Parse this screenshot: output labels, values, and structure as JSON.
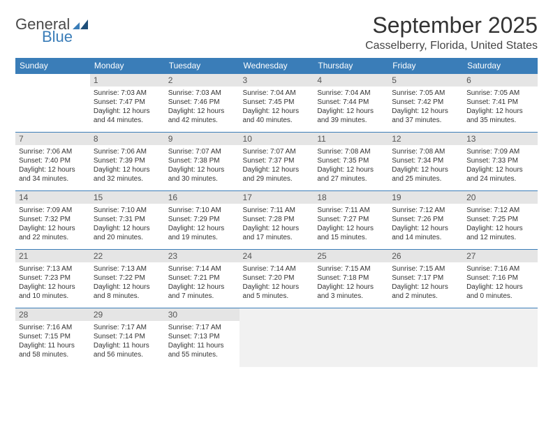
{
  "logo": {
    "word1": "General",
    "word2": "Blue"
  },
  "title": "September 2025",
  "location": "Casselberry, Florida, United States",
  "weekdays": [
    "Sunday",
    "Monday",
    "Tuesday",
    "Wednesday",
    "Thursday",
    "Friday",
    "Saturday"
  ],
  "colors": {
    "header_bg": "#3a7db8",
    "header_fg": "#ffffff",
    "daynum_bg": "#e5e5e5",
    "daynum_fg": "#555555",
    "border": "#3a7db8",
    "trailing_bg": "#f1f1f1",
    "text": "#333333"
  },
  "weeks": [
    [
      null,
      {
        "n": "1",
        "sr": "Sunrise: 7:03 AM",
        "ss": "Sunset: 7:47 PM",
        "d1": "Daylight: 12 hours",
        "d2": "and 44 minutes."
      },
      {
        "n": "2",
        "sr": "Sunrise: 7:03 AM",
        "ss": "Sunset: 7:46 PM",
        "d1": "Daylight: 12 hours",
        "d2": "and 42 minutes."
      },
      {
        "n": "3",
        "sr": "Sunrise: 7:04 AM",
        "ss": "Sunset: 7:45 PM",
        "d1": "Daylight: 12 hours",
        "d2": "and 40 minutes."
      },
      {
        "n": "4",
        "sr": "Sunrise: 7:04 AM",
        "ss": "Sunset: 7:44 PM",
        "d1": "Daylight: 12 hours",
        "d2": "and 39 minutes."
      },
      {
        "n": "5",
        "sr": "Sunrise: 7:05 AM",
        "ss": "Sunset: 7:42 PM",
        "d1": "Daylight: 12 hours",
        "d2": "and 37 minutes."
      },
      {
        "n": "6",
        "sr": "Sunrise: 7:05 AM",
        "ss": "Sunset: 7:41 PM",
        "d1": "Daylight: 12 hours",
        "d2": "and 35 minutes."
      }
    ],
    [
      {
        "n": "7",
        "sr": "Sunrise: 7:06 AM",
        "ss": "Sunset: 7:40 PM",
        "d1": "Daylight: 12 hours",
        "d2": "and 34 minutes."
      },
      {
        "n": "8",
        "sr": "Sunrise: 7:06 AM",
        "ss": "Sunset: 7:39 PM",
        "d1": "Daylight: 12 hours",
        "d2": "and 32 minutes."
      },
      {
        "n": "9",
        "sr": "Sunrise: 7:07 AM",
        "ss": "Sunset: 7:38 PM",
        "d1": "Daylight: 12 hours",
        "d2": "and 30 minutes."
      },
      {
        "n": "10",
        "sr": "Sunrise: 7:07 AM",
        "ss": "Sunset: 7:37 PM",
        "d1": "Daylight: 12 hours",
        "d2": "and 29 minutes."
      },
      {
        "n": "11",
        "sr": "Sunrise: 7:08 AM",
        "ss": "Sunset: 7:35 PM",
        "d1": "Daylight: 12 hours",
        "d2": "and 27 minutes."
      },
      {
        "n": "12",
        "sr": "Sunrise: 7:08 AM",
        "ss": "Sunset: 7:34 PM",
        "d1": "Daylight: 12 hours",
        "d2": "and 25 minutes."
      },
      {
        "n": "13",
        "sr": "Sunrise: 7:09 AM",
        "ss": "Sunset: 7:33 PM",
        "d1": "Daylight: 12 hours",
        "d2": "and 24 minutes."
      }
    ],
    [
      {
        "n": "14",
        "sr": "Sunrise: 7:09 AM",
        "ss": "Sunset: 7:32 PM",
        "d1": "Daylight: 12 hours",
        "d2": "and 22 minutes."
      },
      {
        "n": "15",
        "sr": "Sunrise: 7:10 AM",
        "ss": "Sunset: 7:31 PM",
        "d1": "Daylight: 12 hours",
        "d2": "and 20 minutes."
      },
      {
        "n": "16",
        "sr": "Sunrise: 7:10 AM",
        "ss": "Sunset: 7:29 PM",
        "d1": "Daylight: 12 hours",
        "d2": "and 19 minutes."
      },
      {
        "n": "17",
        "sr": "Sunrise: 7:11 AM",
        "ss": "Sunset: 7:28 PM",
        "d1": "Daylight: 12 hours",
        "d2": "and 17 minutes."
      },
      {
        "n": "18",
        "sr": "Sunrise: 7:11 AM",
        "ss": "Sunset: 7:27 PM",
        "d1": "Daylight: 12 hours",
        "d2": "and 15 minutes."
      },
      {
        "n": "19",
        "sr": "Sunrise: 7:12 AM",
        "ss": "Sunset: 7:26 PM",
        "d1": "Daylight: 12 hours",
        "d2": "and 14 minutes."
      },
      {
        "n": "20",
        "sr": "Sunrise: 7:12 AM",
        "ss": "Sunset: 7:25 PM",
        "d1": "Daylight: 12 hours",
        "d2": "and 12 minutes."
      }
    ],
    [
      {
        "n": "21",
        "sr": "Sunrise: 7:13 AM",
        "ss": "Sunset: 7:23 PM",
        "d1": "Daylight: 12 hours",
        "d2": "and 10 minutes."
      },
      {
        "n": "22",
        "sr": "Sunrise: 7:13 AM",
        "ss": "Sunset: 7:22 PM",
        "d1": "Daylight: 12 hours",
        "d2": "and 8 minutes."
      },
      {
        "n": "23",
        "sr": "Sunrise: 7:14 AM",
        "ss": "Sunset: 7:21 PM",
        "d1": "Daylight: 12 hours",
        "d2": "and 7 minutes."
      },
      {
        "n": "24",
        "sr": "Sunrise: 7:14 AM",
        "ss": "Sunset: 7:20 PM",
        "d1": "Daylight: 12 hours",
        "d2": "and 5 minutes."
      },
      {
        "n": "25",
        "sr": "Sunrise: 7:15 AM",
        "ss": "Sunset: 7:18 PM",
        "d1": "Daylight: 12 hours",
        "d2": "and 3 minutes."
      },
      {
        "n": "26",
        "sr": "Sunrise: 7:15 AM",
        "ss": "Sunset: 7:17 PM",
        "d1": "Daylight: 12 hours",
        "d2": "and 2 minutes."
      },
      {
        "n": "27",
        "sr": "Sunrise: 7:16 AM",
        "ss": "Sunset: 7:16 PM",
        "d1": "Daylight: 12 hours",
        "d2": "and 0 minutes."
      }
    ],
    [
      {
        "n": "28",
        "sr": "Sunrise: 7:16 AM",
        "ss": "Sunset: 7:15 PM",
        "d1": "Daylight: 11 hours",
        "d2": "and 58 minutes."
      },
      {
        "n": "29",
        "sr": "Sunrise: 7:17 AM",
        "ss": "Sunset: 7:14 PM",
        "d1": "Daylight: 11 hours",
        "d2": "and 56 minutes."
      },
      {
        "n": "30",
        "sr": "Sunrise: 7:17 AM",
        "ss": "Sunset: 7:13 PM",
        "d1": "Daylight: 11 hours",
        "d2": "and 55 minutes."
      },
      {
        "trailing": true
      },
      {
        "trailing": true
      },
      {
        "trailing": true
      },
      {
        "trailing": true
      }
    ]
  ]
}
